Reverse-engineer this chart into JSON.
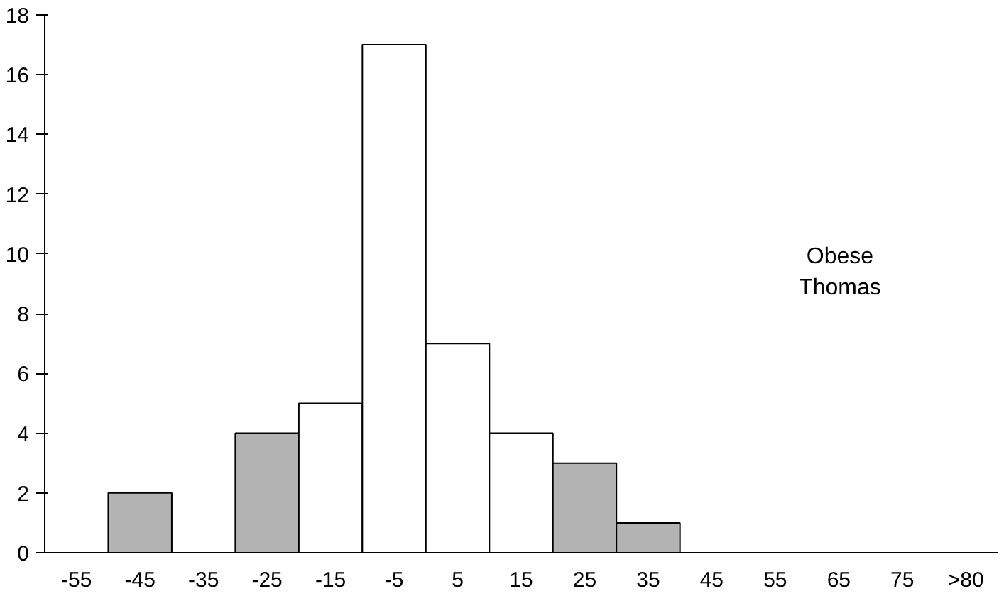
{
  "chart_data": {
    "type": "bar",
    "categories": [
      "-55",
      "-45",
      "-35",
      "-25",
      "-15",
      "-5",
      "5",
      "15",
      "25",
      "35",
      "45",
      "55",
      "65",
      "75",
      ">80"
    ],
    "values": [
      null,
      2,
      null,
      4,
      5,
      17,
      7,
      4,
      3,
      1,
      null,
      null,
      null,
      null,
      null
    ],
    "colors": [
      null,
      "#b3b3b3",
      null,
      "#b3b3b3",
      "#ffffff",
      "#ffffff",
      "#ffffff",
      "#ffffff",
      "#b3b3b3",
      "#b3b3b3",
      null,
      null,
      null,
      null,
      null
    ],
    "ylim": [
      0,
      18
    ],
    "yticks": [
      0,
      2,
      4,
      6,
      8,
      10,
      12,
      14,
      16,
      18
    ],
    "grid": false,
    "annotations": [
      "Obese",
      "Thomas"
    ]
  }
}
